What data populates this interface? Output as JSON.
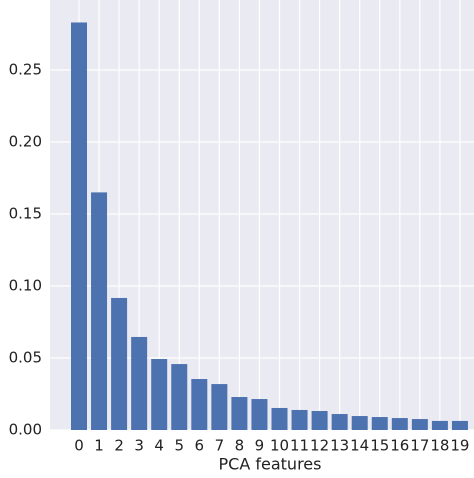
{
  "chart_data": {
    "type": "bar",
    "x_label": "PCA features",
    "categories": [
      "0",
      "1",
      "2",
      "3",
      "4",
      "5",
      "6",
      "7",
      "8",
      "9",
      "10",
      "11",
      "12",
      "13",
      "14",
      "15",
      "16",
      "17",
      "18",
      "19"
    ],
    "values": [
      0.283,
      0.165,
      0.0917,
      0.0646,
      0.0493,
      0.0458,
      0.0354,
      0.0319,
      0.0229,
      0.0215,
      0.0153,
      0.0139,
      0.0132,
      0.0111,
      0.0097,
      0.009,
      0.0083,
      0.0076,
      0.0063,
      0.0063
    ],
    "color": "#4c72b0",
    "ylim": [
      0,
      0.2986
    ],
    "yticks": [
      {
        "value": 0,
        "label": "0.00"
      },
      {
        "value": 0.05,
        "label": "0.05"
      },
      {
        "value": 0.1,
        "label": "0.10"
      },
      {
        "value": 0.15,
        "label": "0.15"
      },
      {
        "value": 0.2,
        "label": "0.20"
      },
      {
        "value": 0.25,
        "label": "0.25"
      }
    ],
    "grid": true
  }
}
